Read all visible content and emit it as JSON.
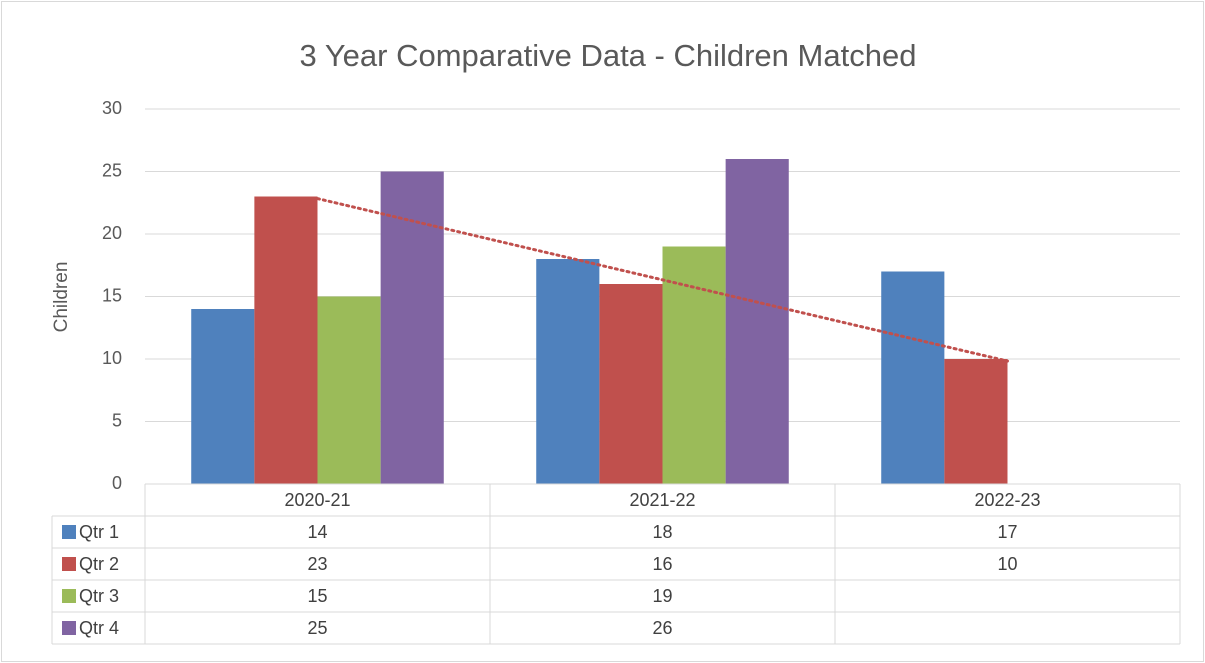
{
  "chart_data": {
    "type": "bar",
    "title": "3 Year Comparative Data - Children Matched",
    "y_label": "Children",
    "categories": [
      "2020-21",
      "2021-22",
      "2022-23"
    ],
    "series": [
      {
        "name": "Qtr 1",
        "color": "#4f81bd",
        "values": [
          14,
          18,
          17
        ]
      },
      {
        "name": "Qtr 2",
        "color": "#c0504d",
        "values": [
          23,
          16,
          10
        ],
        "trendline": "linear"
      },
      {
        "name": "Qtr 3",
        "color": "#9bbb59",
        "values": [
          15,
          19,
          null
        ]
      },
      {
        "name": "Qtr 4",
        "color": "#8064a2",
        "values": [
          25,
          26,
          null
        ]
      }
    ],
    "ylim": [
      0,
      30
    ],
    "yticks": [
      0,
      5,
      10,
      15,
      20,
      25,
      30
    ],
    "grid": true,
    "data_table": true
  }
}
